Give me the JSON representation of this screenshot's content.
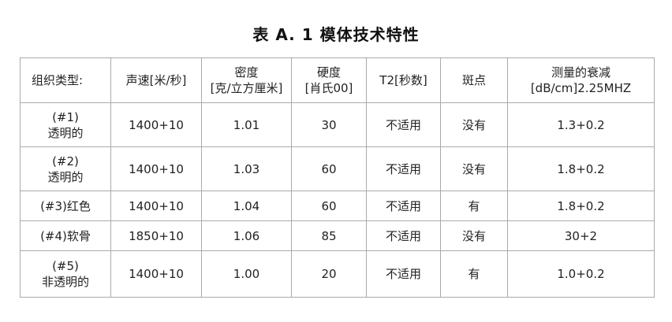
{
  "title": "表 A. 1   模体技术特性",
  "table": {
    "headers": [
      "组织类型:",
      "声速[米/秒]",
      "密度\n[克/立方厘米]",
      "硬度\n[肖氏00]",
      "T2[秒数]",
      "斑点",
      "测量的衰减\n[dB/cm]2.25MHZ"
    ],
    "rows": [
      [
        "(#1)\n透明的",
        "1400+10",
        "1.01",
        "30",
        "不适用",
        "没有",
        "1.3+0.2"
      ],
      [
        "(#2)\n透明的",
        "1400+10",
        "1.03",
        "60",
        "不适用",
        "没有",
        "1.8+0.2"
      ],
      [
        "(#3)红色",
        "1400+10",
        "1.04",
        "60",
        "不适用",
        "有",
        "1.8+0.2"
      ],
      [
        "(#4)软骨",
        "1850+10",
        "1.06",
        "85",
        "不适用",
        "没有",
        "30+2"
      ],
      [
        "(#5)\n非透明的",
        "1400+10",
        "1.00",
        "20",
        "不适用",
        "有",
        "1.0+0.2"
      ]
    ]
  }
}
